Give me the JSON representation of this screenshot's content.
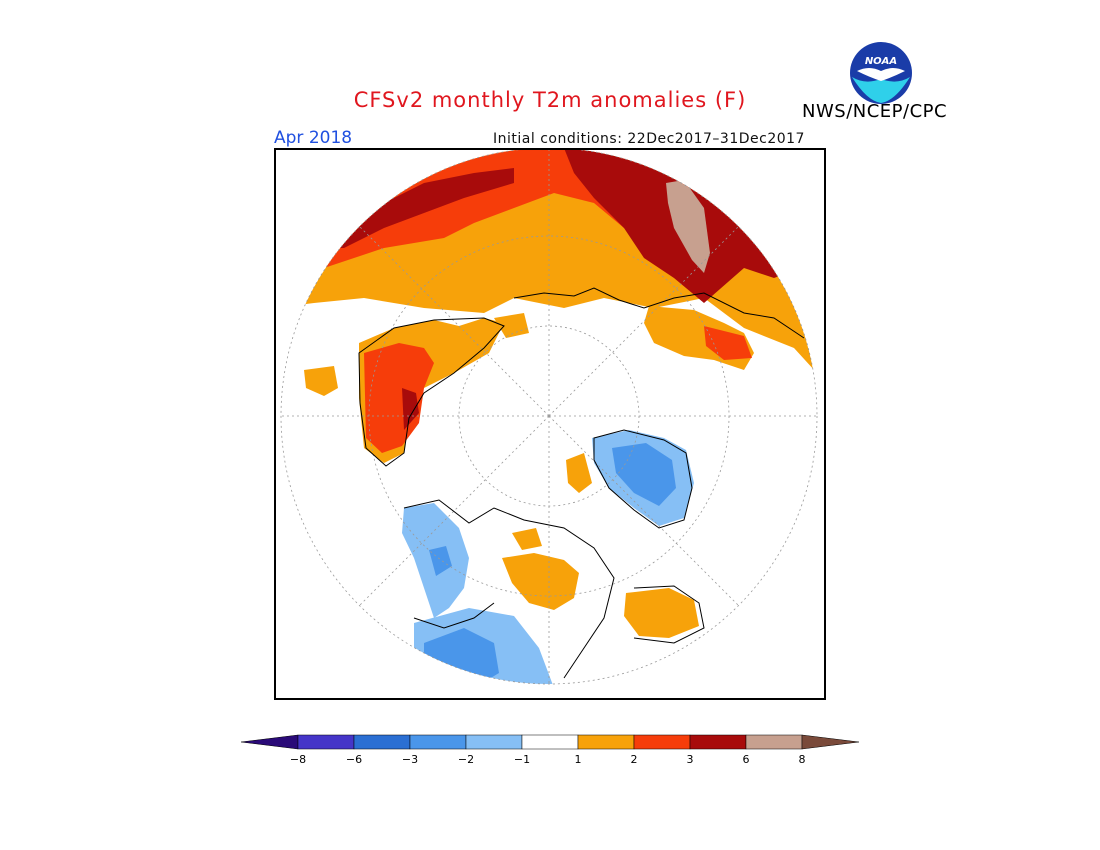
{
  "header": {
    "title": "CFSv2 monthly T2m anomalies (F)",
    "month": "Apr 2018",
    "initial_conditions": "Initial conditions: 22Dec2017–31Dec2017",
    "agency": "NWS/NCEP/CPC",
    "logo_text": "NOAA"
  },
  "colors": {
    "title": "#e0161e",
    "month": "#2050e0"
  },
  "legend": {
    "bins": [
      {
        "color": "#2a0a78"
      },
      {
        "color": "#4535c8"
      },
      {
        "color": "#2b6fd3"
      },
      {
        "color": "#4a96ea"
      },
      {
        "color": "#86bff5"
      },
      {
        "color": "#ffffff"
      },
      {
        "color": "#f7a20a"
      },
      {
        "color": "#f63d0a"
      },
      {
        "color": "#a80b0b"
      },
      {
        "color": "#c7a08f"
      },
      {
        "color": "#7a4a3a"
      }
    ],
    "tick_labels": [
      "−8",
      "−6",
      "−3",
      "−2",
      "−1",
      "1",
      "2",
      "3",
      "6",
      "8"
    ]
  }
}
